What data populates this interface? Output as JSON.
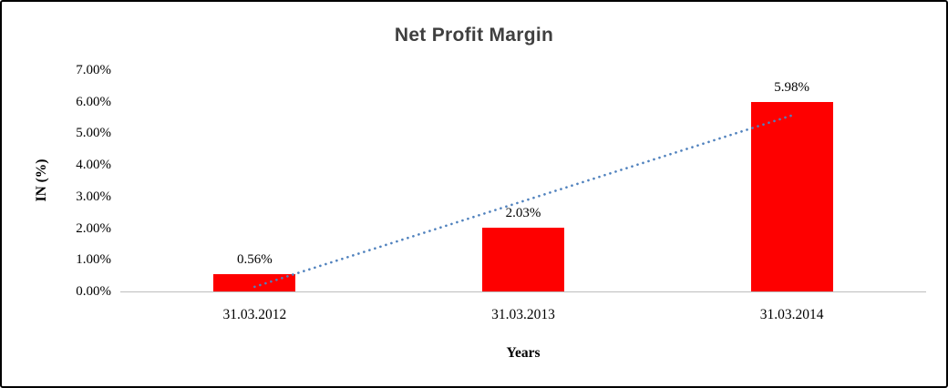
{
  "chart_data": {
    "type": "bar",
    "title": "Net Profit Margin",
    "xlabel": "Years",
    "ylabel": "IN (%)",
    "categories": [
      "31.03.2012",
      "31.03.2013",
      "31.03.2014"
    ],
    "values": [
      0.56,
      2.03,
      5.98
    ],
    "data_labels": [
      "0.56%",
      "2.03%",
      "5.98%"
    ],
    "y_ticks": [
      "0.00%",
      "1.00%",
      "2.00%",
      "3.00%",
      "4.00%",
      "5.00%",
      "6.00%",
      "7.00%"
    ],
    "ylim": [
      0,
      7
    ],
    "grid": false,
    "legend": "none",
    "bar_color": "#fe0000",
    "title_color": "#3f3f3f",
    "trendline": {
      "type": "linear",
      "style": "dotted",
      "color": "#4f81bd"
    }
  }
}
